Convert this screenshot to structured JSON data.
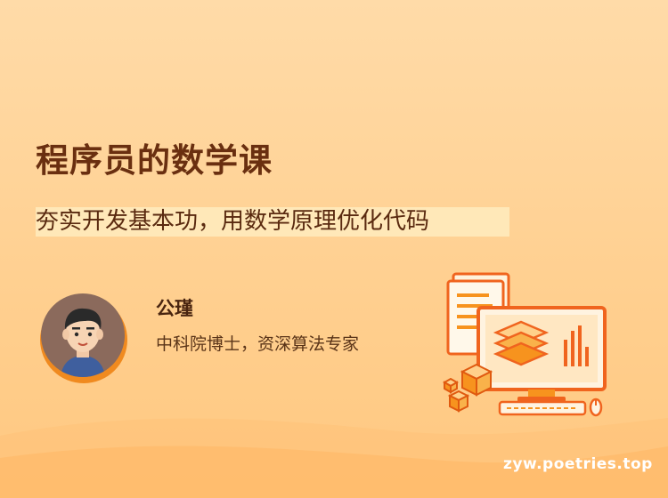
{
  "course": {
    "title": "程序员的数学课",
    "subtitle": "夯实开发基本功，用数学原理优化代码"
  },
  "instructor": {
    "name": "公瑾",
    "bio": "中科院博士，资深算法专家"
  },
  "watermark": "zyw.poetries.top",
  "colors": {
    "background": "#ffd49a",
    "title": "#6a2f10",
    "accent": "#f08a1f",
    "illustration_orange": "#f7931e"
  }
}
